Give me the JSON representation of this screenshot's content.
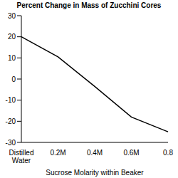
{
  "chart_data": {
    "type": "line",
    "title": "Percent Change in Mass of Zucchini Cores",
    "x_label": "Sucrose Molarity within Beaker",
    "categories": [
      "Distilled Water",
      "0.2M",
      "0.4M",
      "0.6M",
      "0.8"
    ],
    "values": [
      20,
      10.5,
      -3.5,
      -18,
      -25
    ],
    "color": "#000000",
    "ylim": [
      -30,
      30
    ],
    "yticks": [
      -30,
      -20,
      -10,
      0,
      10,
      20,
      30
    ],
    "grid": false
  }
}
